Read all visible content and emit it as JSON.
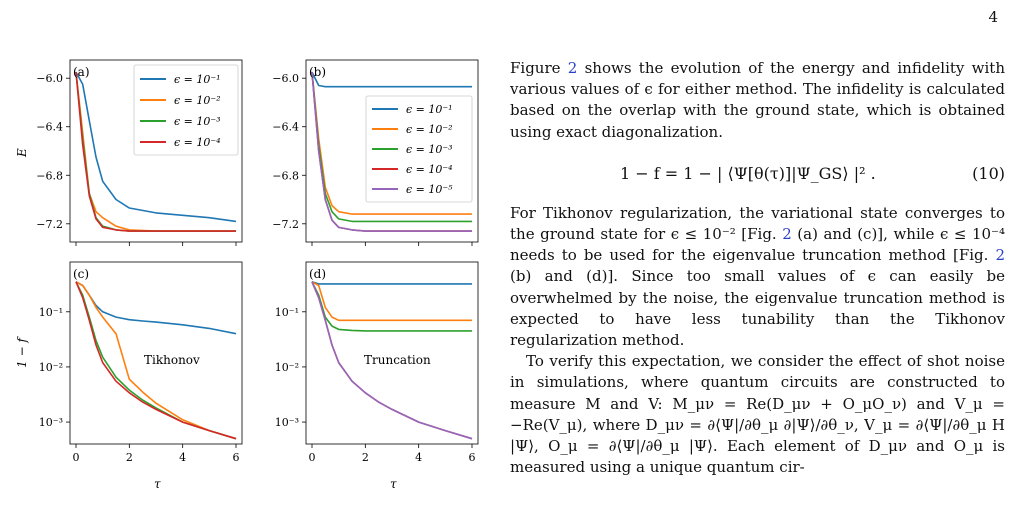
{
  "page_number": "4",
  "figure": {
    "ylabel_top": "E",
    "ylabel_bottom": "1 − f",
    "xlabel": "τ",
    "panels": [
      {
        "id": "a",
        "label": "(a)",
        "annotation": ""
      },
      {
        "id": "b",
        "label": "(b)",
        "annotation": ""
      },
      {
        "id": "c",
        "label": "(c)",
        "annotation": "Tikhonov"
      },
      {
        "id": "d",
        "label": "(d)",
        "annotation": "Truncation"
      }
    ],
    "x_ticks": [
      "0",
      "2",
      "4",
      "6"
    ],
    "energy_ticks": [
      "−6.0",
      "−6.4",
      "−6.8",
      "−7.2"
    ],
    "infidelity_ticks": [
      "10⁻¹",
      "10⁻²",
      "10⁻³"
    ],
    "legend_a": [
      "ϵ = 10⁻¹",
      "ϵ = 10⁻²",
      "ϵ = 10⁻³",
      "ϵ = 10⁻⁴"
    ],
    "legend_b": [
      "ϵ = 10⁻¹",
      "ϵ = 10⁻²",
      "ϵ = 10⁻³",
      "ϵ = 10⁻⁴",
      "ϵ = 10⁻⁵"
    ],
    "colors": [
      "#1f77b4",
      "#ff7f0e",
      "#2ca02c",
      "#d62728",
      "#9467bd"
    ]
  },
  "chart_data": [
    {
      "panel": "a",
      "type": "line",
      "ylabel": "E",
      "xlabel": "",
      "xlim": [
        0,
        6
      ],
      "ylim": [
        -7.35,
        -5.85
      ],
      "x": [
        0,
        0.25,
        0.5,
        0.75,
        1,
        1.5,
        2,
        3,
        4,
        5,
        6
      ],
      "series": [
        {
          "name": "ϵ = 10⁻¹",
          "values": [
            -5.95,
            -6.05,
            -6.35,
            -6.65,
            -6.85,
            -7.0,
            -7.07,
            -7.11,
            -7.13,
            -7.15,
            -7.18
          ]
        },
        {
          "name": "ϵ = 10⁻²",
          "values": [
            -5.95,
            -6.45,
            -6.95,
            -7.1,
            -7.15,
            -7.22,
            -7.25,
            -7.26,
            -7.26,
            -7.26,
            -7.26
          ]
        },
        {
          "name": "ϵ = 10⁻³",
          "values": [
            -5.95,
            -6.5,
            -6.95,
            -7.15,
            -7.22,
            -7.25,
            -7.26,
            -7.26,
            -7.26,
            -7.26,
            -7.26
          ]
        },
        {
          "name": "ϵ = 10⁻⁴",
          "values": [
            -5.95,
            -6.55,
            -6.97,
            -7.16,
            -7.23,
            -7.25,
            -7.26,
            -7.26,
            -7.26,
            -7.26,
            -7.26
          ]
        }
      ]
    },
    {
      "panel": "b",
      "type": "line",
      "ylabel": "",
      "xlabel": "",
      "xlim": [
        0,
        6
      ],
      "ylim": [
        -7.35,
        -5.85
      ],
      "x": [
        0,
        0.25,
        0.5,
        0.75,
        1,
        1.5,
        2,
        3,
        4,
        5,
        6
      ],
      "series": [
        {
          "name": "ϵ = 10⁻¹",
          "values": [
            -5.95,
            -6.06,
            -6.07,
            -6.07,
            -6.07,
            -6.07,
            -6.07,
            -6.07,
            -6.07,
            -6.07,
            -6.07
          ]
        },
        {
          "name": "ϵ = 10⁻²",
          "values": [
            -5.95,
            -6.5,
            -6.9,
            -7.05,
            -7.1,
            -7.12,
            -7.12,
            -7.12,
            -7.12,
            -7.12,
            -7.12
          ]
        },
        {
          "name": "ϵ = 10⁻³",
          "values": [
            -5.95,
            -6.55,
            -6.95,
            -7.1,
            -7.16,
            -7.18,
            -7.18,
            -7.18,
            -7.18,
            -7.18,
            -7.18
          ]
        },
        {
          "name": "ϵ = 10⁻⁴",
          "values": [
            -5.95,
            -6.6,
            -7.0,
            -7.17,
            -7.23,
            -7.25,
            -7.26,
            -7.26,
            -7.26,
            -7.26,
            -7.26
          ]
        },
        {
          "name": "ϵ = 10⁻⁵",
          "values": [
            -5.95,
            -6.6,
            -7.0,
            -7.17,
            -7.23,
            -7.25,
            -7.26,
            -7.26,
            -7.26,
            -7.26,
            -7.26
          ]
        }
      ]
    },
    {
      "panel": "c",
      "type": "line",
      "ylabel": "1 − f",
      "xlabel": "τ",
      "xlim": [
        0,
        6
      ],
      "ylim": [
        0.0004,
        0.8
      ],
      "yscale": "log",
      "x": [
        0,
        0.25,
        0.5,
        0.75,
        1,
        1.5,
        2,
        2.5,
        3,
        4,
        5,
        6
      ],
      "series": [
        {
          "name": "ϵ = 10⁻¹",
          "values": [
            0.35,
            0.3,
            0.2,
            0.13,
            0.1,
            0.08,
            0.072,
            0.068,
            0.065,
            0.058,
            0.05,
            0.04
          ]
        },
        {
          "name": "ϵ = 10⁻²",
          "values": [
            0.35,
            0.3,
            0.2,
            0.12,
            0.08,
            0.04,
            0.006,
            0.0035,
            0.0022,
            0.0011,
            0.0007,
            0.0005
          ]
        },
        {
          "name": "ϵ = 10⁻³",
          "values": [
            0.35,
            0.2,
            0.08,
            0.03,
            0.015,
            0.0065,
            0.0038,
            0.0025,
            0.0018,
            0.001,
            0.0007,
            0.0005
          ]
        },
        {
          "name": "ϵ = 10⁻⁴",
          "values": [
            0.35,
            0.18,
            0.07,
            0.025,
            0.012,
            0.0055,
            0.0034,
            0.0023,
            0.0017,
            0.001,
            0.0007,
            0.0005
          ]
        }
      ]
    },
    {
      "panel": "d",
      "type": "line",
      "ylabel": "",
      "xlabel": "τ",
      "xlim": [
        0,
        6
      ],
      "ylim": [
        0.0004,
        0.8
      ],
      "yscale": "log",
      "x": [
        0,
        0.25,
        0.5,
        0.75,
        1,
        1.5,
        2,
        2.5,
        3,
        4,
        5,
        6
      ],
      "series": [
        {
          "name": "ϵ = 10⁻¹",
          "values": [
            0.35,
            0.32,
            0.32,
            0.32,
            0.32,
            0.32,
            0.32,
            0.32,
            0.32,
            0.32,
            0.32,
            0.32
          ]
        },
        {
          "name": "ϵ = 10⁻²",
          "values": [
            0.35,
            0.3,
            0.12,
            0.08,
            0.07,
            0.07,
            0.07,
            0.07,
            0.07,
            0.07,
            0.07,
            0.07
          ]
        },
        {
          "name": "ϵ = 10⁻³",
          "values": [
            0.35,
            0.2,
            0.08,
            0.055,
            0.048,
            0.046,
            0.045,
            0.045,
            0.045,
            0.045,
            0.045,
            0.045
          ]
        },
        {
          "name": "ϵ = 10⁻⁴",
          "values": [
            0.35,
            0.18,
            0.07,
            0.025,
            0.012,
            0.0055,
            0.0034,
            0.0023,
            0.0017,
            0.001,
            0.0007,
            0.0005
          ]
        },
        {
          "name": "ϵ = 10⁻⁵",
          "values": [
            0.35,
            0.18,
            0.07,
            0.025,
            0.012,
            0.0055,
            0.0034,
            0.0023,
            0.0017,
            0.001,
            0.0007,
            0.0005
          ]
        }
      ]
    }
  ],
  "text": {
    "p1_a": "Figure ",
    "p1_ref": "2",
    "p1_b": " shows the evolution of the energy and infidelity with various values of ϵ for either method. The infidelity is calculated based on the overlap with the ground state, which is obtained using exact diagonalization.",
    "equation": "1 − f = 1 − | ⟨Ψ[θ(τ)]|Ψ_GS⟩ |² .",
    "equation_number": "(10)",
    "p2_a": "For Tikhonov regularization, the variational state converges to the ground state for ϵ ≤ 10⁻² [Fig. ",
    "p2_ref1": "2",
    "p2_b": " (a) and (c)], while ϵ ≤ 10⁻⁴ needs to be used for the eigenvalue truncation method [Fig. ",
    "p2_ref2": "2",
    "p2_c": " (b) and (d)]. Since too small values of ϵ can easily be overwhelmed by the noise, the eigenvalue truncation method is expected to have less tunability than the Tikhonov regularization method.",
    "p3": "To verify this expectation, we consider the effect of shot noise in simulations, where quantum circuits are constructed to measure M and V: M_μν = Re(D_μν + O_μO_ν) and V_μ = −Re(V_μ), where D_μν = ∂⟨Ψ|/∂θ_μ ∂|Ψ⟩/∂θ_ν, V_μ = ∂⟨Ψ|/∂θ_μ H |Ψ⟩, O_μ = ∂⟨Ψ|/∂θ_μ |Ψ⟩. Each element of D_μν and O_μ is measured using a unique quantum cir-"
  }
}
